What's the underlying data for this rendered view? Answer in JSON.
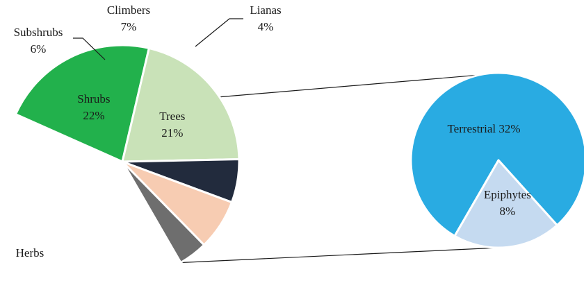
{
  "chart_data": [
    {
      "type": "pie",
      "title": "",
      "slices": [
        {
          "label": "Herbs",
          "value": 40,
          "value_text": "",
          "color": "#ffffff",
          "label_inside": true
        },
        {
          "label": "Shrubs",
          "value": 22,
          "value_text": "22%",
          "color": "#22b14c",
          "label_inside": true
        },
        {
          "label": "Trees",
          "value": 21,
          "value_text": "21%",
          "color": "#c9e2b8",
          "label_inside": true
        },
        {
          "label": "Subshrubs",
          "value": 6,
          "value_text": "6%",
          "color": "#222b3d",
          "label_inside": false
        },
        {
          "label": "Climbers",
          "value": 7,
          "value_text": "7%",
          "color": "#f7ccb2",
          "label_inside": false
        },
        {
          "label": "Lianas",
          "value": 4,
          "value_text": "4%",
          "color": "#6e6e6e",
          "label_inside": false
        }
      ]
    },
    {
      "type": "pie",
      "title": "",
      "breakdown_of": "Herbs",
      "slices": [
        {
          "label": "Terrestrial",
          "value": 32,
          "value_text": "32%",
          "color": "#29abe2"
        },
        {
          "label": "Epiphytes",
          "value": 8,
          "value_text": "8%",
          "color": "#c5daf0"
        }
      ]
    }
  ]
}
